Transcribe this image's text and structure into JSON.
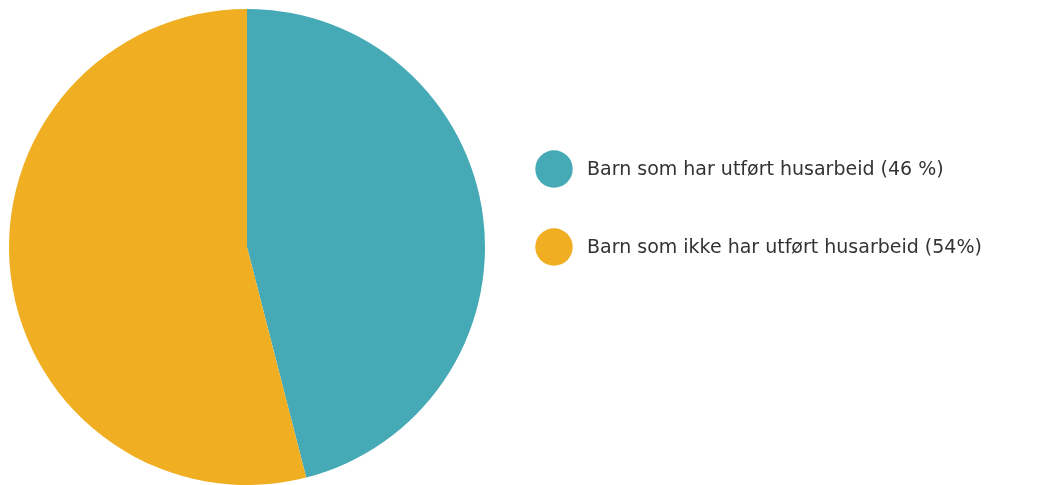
{
  "chart_data": {
    "type": "pie",
    "categories": [
      "Barn som har utført husarbeid (46 %)",
      "Barn som ikke har utført husarbeid (54%)"
    ],
    "values": [
      46,
      54
    ],
    "colors": [
      "#45aab6",
      "#f0ae22"
    ],
    "legend": "right"
  }
}
